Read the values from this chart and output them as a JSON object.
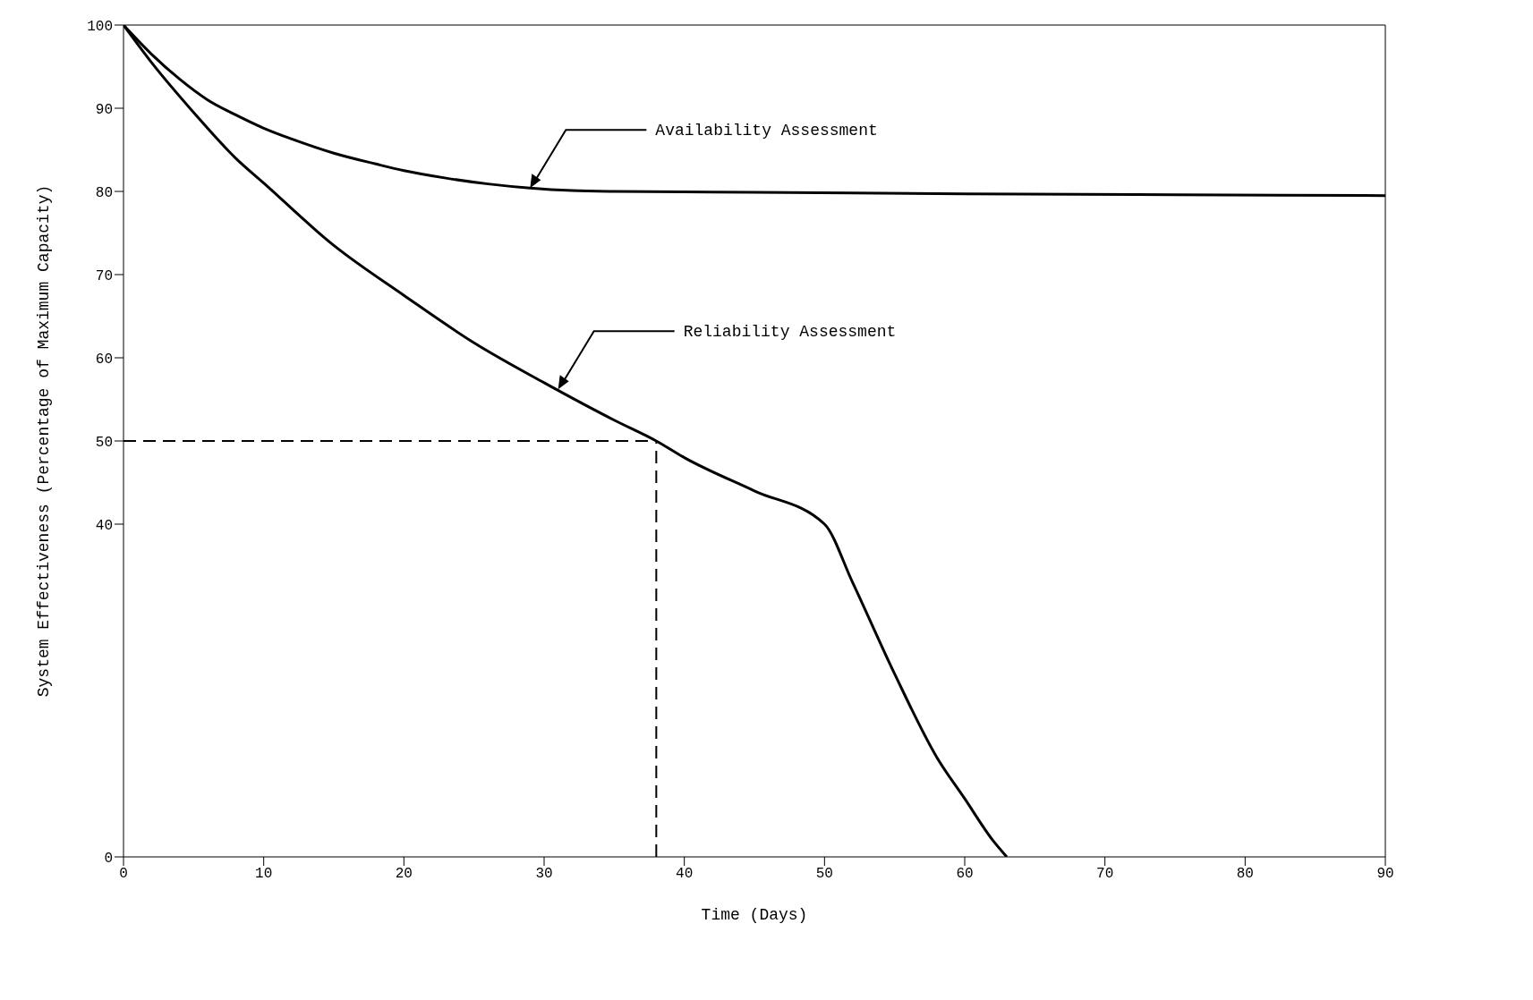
{
  "chart_data": {
    "type": "line",
    "xlabel": "Time (Days)",
    "ylabel": "System Effectiveness (Percentage of Maximum Capacity)",
    "xlim": [
      0,
      90
    ],
    "xticks": [
      0,
      10,
      20,
      30,
      40,
      50,
      60,
      70,
      80,
      90
    ],
    "ylim": [
      0,
      100
    ],
    "yticks": [
      0,
      40,
      50,
      60,
      70,
      80,
      90,
      100
    ],
    "marker": "none",
    "line_style": "solid",
    "series": [
      {
        "color": "#000000",
        "x": [
          0,
          2,
          4,
          6,
          8,
          10,
          12,
          15,
          18,
          20,
          23,
          26,
          29,
          32,
          35,
          45,
          60,
          75,
          90
        ],
        "values": [
          100,
          96.5,
          93.5,
          91,
          89.2,
          87.6,
          86.3,
          84.6,
          83.3,
          82.5,
          81.6,
          80.9,
          80.4,
          80.1,
          80,
          79.9,
          79.7,
          79.6,
          79.5
        ]
      },
      {
        "color": "#000000",
        "x": [
          0,
          2,
          5,
          8,
          10,
          15,
          20,
          25,
          30,
          35,
          38,
          40,
          45,
          50,
          52,
          55,
          58,
          60,
          62,
          63
        ],
        "values": [
          100,
          95.5,
          89.5,
          84,
          81,
          73.5,
          67.5,
          61.8,
          57,
          52.5,
          50,
          48,
          44,
          40,
          33,
          22,
          12,
          7,
          2,
          0
        ]
      }
    ],
    "ref_lines": [
      {
        "axis": "y",
        "value": 50,
        "line_style": "dashed",
        "color": "#000000"
      },
      {
        "axis": "x",
        "value": 38,
        "line_style": "dashed",
        "color": "#000000"
      }
    ],
    "annotations": [
      {
        "text": "Availability Assessment",
        "x": 29,
        "y": 80.4
      },
      {
        "text": "Reliability Assessment",
        "x": 31,
        "y": 56.2
      }
    ]
  }
}
